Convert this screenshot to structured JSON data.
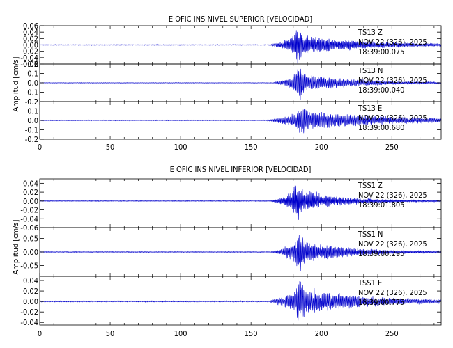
{
  "panels": [
    {
      "title": "E OFIC INS NIVEL SUPERIOR [VELOCIDAD]",
      "ylabel": "Amplitud [cm/s]",
      "xlim": [
        0,
        285
      ],
      "x_ticks": [
        "0",
        "50",
        "100",
        "150",
        "200",
        "250"
      ],
      "x_tick_values": [
        0,
        50,
        100,
        150,
        200,
        250
      ],
      "color": "#0000cc",
      "traces": [
        {
          "station": "TS13",
          "component": "Z",
          "date": "NOV 22 (326), 2025",
          "time": "18:39:00.075",
          "ylim": [
            -0.06,
            0.06
          ],
          "y_ticks": [
            {
              "v": 0.06,
              "label": "0.06"
            },
            {
              "v": 0.04,
              "label": "0.04"
            },
            {
              "v": 0.02,
              "label": "0.02"
            },
            {
              "v": 0.0,
              "label": "0.00"
            },
            {
              "v": -0.02,
              "label": "-0.02"
            },
            {
              "v": -0.04,
              "label": "-0.04"
            },
            {
              "v": -0.06,
              "label": "-0.06"
            }
          ],
          "noise": 0.0012,
          "peak": 0.055,
          "onset": 162,
          "peak_t": 183,
          "coda": 45,
          "freq": 1.6
        },
        {
          "station": "TS13",
          "component": "N",
          "date": "NOV 22 (326), 2025",
          "time": "18:39:00.040",
          "ylim": [
            -0.2,
            0.2
          ],
          "y_ticks": [
            {
              "v": 0.2,
              "label": "0.2"
            },
            {
              "v": 0.1,
              "label": "0.1"
            },
            {
              "v": 0.0,
              "label": "0.0"
            },
            {
              "v": -0.1,
              "label": "-0.1"
            },
            {
              "v": -0.2,
              "label": "-0.2"
            }
          ],
          "noise": 0.003,
          "peak": 0.19,
          "onset": 165,
          "peak_t": 184,
          "coda": 35,
          "freq": 1.3
        },
        {
          "station": "TS13",
          "component": "E",
          "date": "NOV 22 (326), 2025",
          "time": "18:39:00.680",
          "ylim": [
            -0.2,
            0.2
          ],
          "y_ticks": [
            {
              "v": 0.2,
              "label": "0.2"
            },
            {
              "v": 0.1,
              "label": "0.1"
            },
            {
              "v": 0.0,
              "label": "0.0"
            },
            {
              "v": -0.1,
              "label": "-0.1"
            },
            {
              "v": -0.2,
              "label": "-0.2"
            }
          ],
          "noise": 0.004,
          "peak": 0.19,
          "onset": 160,
          "peak_t": 186,
          "coda": 60,
          "freq": 1.4
        }
      ]
    },
    {
      "title": "E OFIC INS NIVEL INFERIOR [VELOCIDAD]",
      "ylabel": "Amplitud [cm/s]",
      "xlim": [
        0,
        285
      ],
      "x_ticks": [
        "0",
        "50",
        "100",
        "150",
        "200",
        "250"
      ],
      "x_tick_values": [
        0,
        50,
        100,
        150,
        200,
        250
      ],
      "color": "#0000cc",
      "traces": [
        {
          "station": "TSS1",
          "component": "Z",
          "date": "NOV 22 (326), 2025",
          "time": "18:39:01.805",
          "ylim": [
            -0.06,
            0.05
          ],
          "y_ticks": [
            {
              "v": 0.04,
              "label": "0.04"
            },
            {
              "v": 0.02,
              "label": "0.02"
            },
            {
              "v": 0.0,
              "label": "0.00"
            },
            {
              "v": -0.02,
              "label": "-0.02"
            },
            {
              "v": -0.04,
              "label": "-0.04"
            },
            {
              "v": -0.06,
              "label": "-0.06"
            }
          ],
          "noise": 0.0008,
          "peak": 0.045,
          "onset": 163,
          "peak_t": 183,
          "coda": 30,
          "freq": 1.7
        },
        {
          "station": "TSS1",
          "component": "N",
          "date": "NOV 22 (326), 2025",
          "time": "18:39:00.295",
          "ylim": [
            -0.09,
            0.09
          ],
          "y_ticks": [
            {
              "v": 0.05,
              "label": "0.05"
            },
            {
              "v": 0.0,
              "label": "0.00"
            },
            {
              "v": -0.05,
              "label": "-0.05"
            }
          ],
          "noise": 0.0015,
          "peak": 0.08,
          "onset": 164,
          "peak_t": 184,
          "coda": 32,
          "freq": 1.5
        },
        {
          "station": "TSS1",
          "component": "E",
          "date": "NOV 22 (326), 2025",
          "time": "18:39:00.775",
          "ylim": [
            -0.045,
            0.048
          ],
          "y_ticks": [
            {
              "v": 0.04,
              "label": "0.04"
            },
            {
              "v": 0.02,
              "label": "0.02"
            },
            {
              "v": 0.0,
              "label": "0.00"
            },
            {
              "v": -0.02,
              "label": "-0.02"
            },
            {
              "v": -0.04,
              "label": "-0.04"
            }
          ],
          "noise": 0.001,
          "peak": 0.044,
          "onset": 160,
          "peak_t": 185,
          "coda": 45,
          "freq": 1.4
        }
      ]
    }
  ],
  "chart_data": [
    {
      "type": "line",
      "title": "E OFIC INS NIVEL SUPERIOR [VELOCIDAD]",
      "ylabel": "Amplitud [cm/s]",
      "xlabel": "",
      "xlim": [
        0,
        285
      ],
      "series": [
        {
          "name": "TS13 Z",
          "ylim": [
            -0.06,
            0.06
          ],
          "onset": 162,
          "peak_time": 183,
          "peak_amplitude": 0.055
        },
        {
          "name": "TS13 N",
          "ylim": [
            -0.2,
            0.2
          ],
          "onset": 165,
          "peak_time": 184,
          "peak_amplitude": 0.19
        },
        {
          "name": "TS13 E",
          "ylim": [
            -0.2,
            0.2
          ],
          "onset": 160,
          "peak_time": 186,
          "peak_amplitude": 0.19
        }
      ]
    },
    {
      "type": "line",
      "title": "E OFIC INS NIVEL INFERIOR [VELOCIDAD]",
      "ylabel": "Amplitud [cm/s]",
      "xlabel": "",
      "xlim": [
        0,
        285
      ],
      "series": [
        {
          "name": "TSS1 Z",
          "ylim": [
            -0.06,
            0.05
          ],
          "onset": 163,
          "peak_time": 183,
          "peak_amplitude": 0.045
        },
        {
          "name": "TSS1 N",
          "ylim": [
            -0.09,
            0.09
          ],
          "onset": 164,
          "peak_time": 184,
          "peak_amplitude": 0.08
        },
        {
          "name": "TSS1 E",
          "ylim": [
            -0.045,
            0.048
          ],
          "onset": 160,
          "peak_time": 185,
          "peak_amplitude": 0.044
        }
      ]
    }
  ]
}
